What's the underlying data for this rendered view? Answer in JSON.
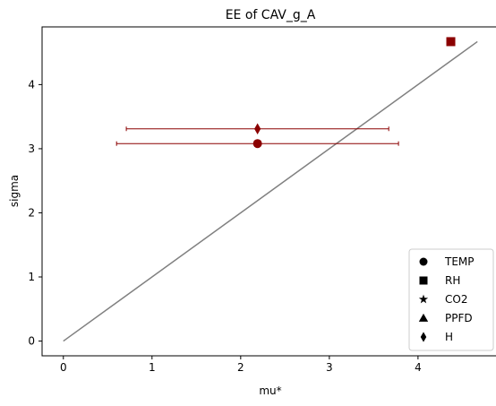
{
  "chart_data": {
    "type": "scatter",
    "title": "EE of CAV_g_A",
    "xlabel": "mu*",
    "ylabel": "sigma",
    "xlim": [
      -0.24,
      4.91
    ],
    "ylim": [
      -0.23,
      4.9
    ],
    "xticks": [
      0,
      1,
      2,
      3,
      4
    ],
    "yticks": [
      0,
      1,
      2,
      3,
      4
    ],
    "grid": false,
    "legend_position": "lower-right",
    "reference_line": {
      "x": [
        0,
        4.67
      ],
      "y": [
        0,
        4.67
      ],
      "color": "#808080"
    },
    "legend": [
      {
        "label": "TEMP",
        "marker": "circle"
      },
      {
        "label": "RH",
        "marker": "square"
      },
      {
        "label": "CO2",
        "marker": "star"
      },
      {
        "label": "PPFD",
        "marker": "triangle"
      },
      {
        "label": "H",
        "marker": "diamond"
      }
    ],
    "points": [
      {
        "name": "TEMP",
        "marker": "circle",
        "x": 2.19,
        "y": 3.08,
        "xerr": 1.59,
        "color": "#8b0000"
      },
      {
        "name": "RH",
        "marker": "square",
        "x": 4.37,
        "y": 4.67,
        "xerr": null,
        "color": "#8b0000"
      },
      {
        "name": "H",
        "marker": "diamond",
        "x": 2.19,
        "y": 3.31,
        "xerr": 1.48,
        "color": "#8b0000"
      }
    ]
  }
}
